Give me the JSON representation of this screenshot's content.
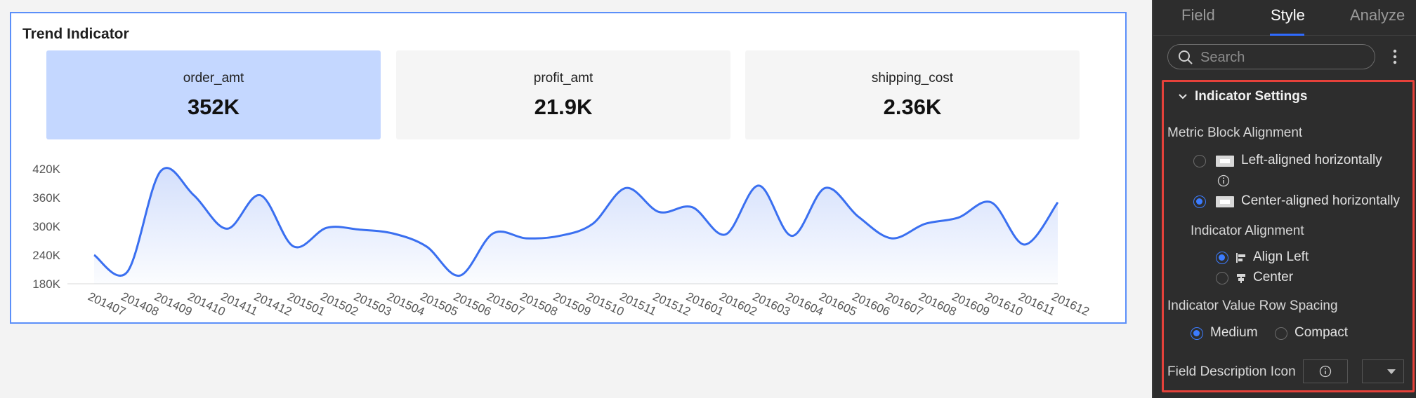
{
  "card": {
    "title": "Trend Indicator",
    "kpis": [
      {
        "name": "order_amt",
        "value": "352K",
        "active": true
      },
      {
        "name": "profit_amt",
        "value": "21.9K",
        "active": false
      },
      {
        "name": "shipping_cost",
        "value": "2.36K",
        "active": false
      }
    ]
  },
  "chart_data": {
    "type": "area",
    "title": "",
    "xlabel": "",
    "ylabel": "",
    "y_tick_labels": [
      "420K",
      "360K",
      "300K",
      "240K",
      "180K"
    ],
    "ylim": [
      180000,
      420000
    ],
    "grid": false,
    "line_color": "#3a6ff0",
    "x": [
      "201407",
      "201408",
      "201409",
      "201410",
      "201411",
      "201412",
      "201501",
      "201502",
      "201503",
      "201504",
      "201505",
      "201506",
      "201507",
      "201508",
      "201509",
      "201510",
      "201511",
      "201512",
      "201601",
      "201602",
      "201603",
      "201604",
      "201605",
      "201606",
      "201607",
      "201608",
      "201609",
      "201610",
      "201611",
      "201612"
    ],
    "series": [
      {
        "values": [
          240000,
          205000,
          415000,
          365000,
          295000,
          365000,
          258000,
          297000,
          293000,
          285000,
          258000,
          197000,
          285000,
          275000,
          280000,
          305000,
          380000,
          330000,
          340000,
          283000,
          385000,
          280000,
          380000,
          320000,
          275000,
          305000,
          318000,
          350000,
          262000,
          350000
        ]
      }
    ]
  },
  "panel": {
    "tabs": [
      "Field",
      "Style",
      "Analyze"
    ],
    "active_tab": "Style",
    "search_placeholder": "Search",
    "section_title": "Indicator Settings",
    "metric_block_alignment_label": "Metric Block Alignment",
    "opt_left_aligned": "Left-aligned horizontally",
    "opt_center_aligned": "Center-aligned horizontally",
    "indicator_alignment_label": "Indicator Alignment",
    "opt_align_left": "Align Left",
    "opt_center": "Center",
    "row_spacing_label": "Indicator Value Row Spacing",
    "opt_medium": "Medium",
    "opt_compact": "Compact",
    "field_description_icon_label": "Field Description Icon"
  },
  "colors": {
    "accent": "#2f6bff",
    "highlight_border": "#e5413a",
    "kpi_active_bg": "#c4d7ff"
  }
}
